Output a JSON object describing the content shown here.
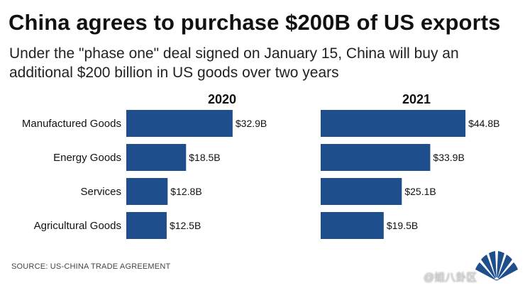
{
  "header": {
    "title": "China agrees to purchase $200B of US exports",
    "subtitle": "Under the \"phase one\" deal signed on January 15, China will buy an additional $200 billion in US goods over two years"
  },
  "footer": {
    "source": "SOURCE: US-China Trade Agreement",
    "watermark": "@姐八卦区"
  },
  "colors": {
    "bar": "#1f4e8c",
    "text": "#111111"
  },
  "logo_icon": "peacock-logo-icon",
  "chart_data": [
    {
      "type": "bar",
      "orientation": "horizontal",
      "title": "2020",
      "categories": [
        "Manufactured Goods",
        "Energy Goods",
        "Services",
        "Agricultural Goods"
      ],
      "values": [
        32.9,
        18.5,
        12.8,
        12.5
      ],
      "value_labels": [
        "$32.9B",
        "$18.5B",
        "$12.8B",
        "$12.5B"
      ],
      "xlim": [
        0,
        45
      ]
    },
    {
      "type": "bar",
      "orientation": "horizontal",
      "title": "2021",
      "categories": [
        "Manufactured Goods",
        "Energy Goods",
        "Services",
        "Agricultural Goods"
      ],
      "values": [
        44.8,
        33.9,
        25.1,
        19.5
      ],
      "value_labels": [
        "$44.8B",
        "$33.9B",
        "$25.1B",
        "$19.5B"
      ],
      "xlim": [
        0,
        45
      ]
    }
  ]
}
